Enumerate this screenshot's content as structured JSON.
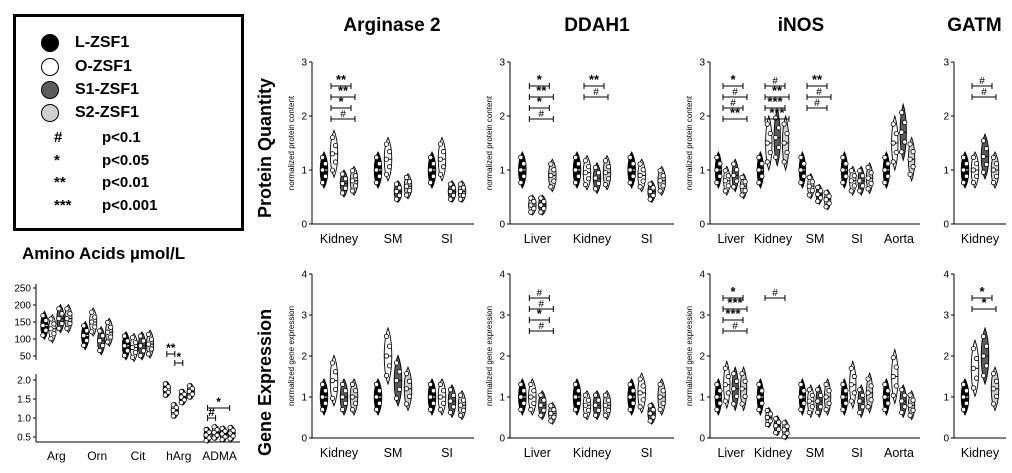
{
  "legend": {
    "groups": [
      {
        "label": "L-ZSF1",
        "color": "#000000"
      },
      {
        "label": "O-ZSF1",
        "color": "#ffffff"
      },
      {
        "label": "S1-ZSF1",
        "color": "#5c5c5c"
      },
      {
        "label": "S2-ZSF1",
        "color": "#cfcfcf"
      }
    ],
    "significance": [
      {
        "symbol": "#",
        "label": "p<0.1"
      },
      {
        "symbol": "*",
        "label": "p<0.05"
      },
      {
        "symbol": "**",
        "label": "p<0.01"
      },
      {
        "symbol": "***",
        "label": "p<0.001"
      }
    ]
  },
  "column_titles": [
    "Arginase 2",
    "DDAH1",
    "iNOS",
    "GATM"
  ],
  "row_titles": [
    "Protein Quantity",
    "Gene Expression"
  ],
  "amino_title": "Amino Acids µmol/L",
  "chart_data": [
    {
      "id": "amino-acids",
      "type": "violin",
      "title": "Amino Acids µmol/L",
      "categories": [
        "Arg",
        "Orn",
        "Cit",
        "hArg",
        "ADMA"
      ],
      "y_ticks": [
        "250",
        "200",
        "150",
        "100",
        "50",
        "2.0",
        "1.5",
        "1.0",
        "0.5"
      ],
      "series_medians": {
        "Arg": [
          140,
          130,
          160,
          160
        ],
        "Orn": [
          110,
          150,
          95,
          120
        ],
        "Cit": [
          80,
          75,
          80,
          85
        ],
        "hArg": [
          1.75,
          1.2,
          1.55,
          1.7
        ],
        "ADMA": [
          0.55,
          0.62,
          0.58,
          0.6
        ]
      },
      "annotations": [
        "**",
        "*",
        "#",
        "*"
      ]
    },
    {
      "id": "arg2-protein",
      "type": "violin",
      "ylabel": "normalized protein content",
      "categories": [
        "Kidney",
        "SM",
        "SI"
      ],
      "ylim": [
        0,
        3
      ],
      "series_medians": {
        "Kidney": [
          1.0,
          1.3,
          0.75,
          0.8
        ],
        "SM": [
          1.0,
          1.2,
          0.6,
          0.7
        ],
        "SI": [
          1.0,
          1.2,
          0.6,
          0.6
        ]
      },
      "annotations": [
        "**",
        "**",
        "*",
        "#"
      ]
    },
    {
      "id": "ddah1-protein",
      "type": "violin",
      "ylabel": "normalized protein content",
      "categories": [
        "Liver",
        "Kidney",
        "SI"
      ],
      "ylim": [
        0,
        3
      ],
      "series_medians": {
        "Liver": [
          1.0,
          0.35,
          0.35,
          0.9
        ],
        "Kidney": [
          1.0,
          0.95,
          0.85,
          0.95
        ],
        "SI": [
          1.0,
          0.9,
          0.6,
          0.8
        ]
      },
      "annotations": [
        "*",
        "**",
        "*",
        "#",
        "**",
        "#"
      ]
    },
    {
      "id": "inos-protein",
      "type": "violin",
      "ylabel": "normalized protein content",
      "categories": [
        "Liver",
        "Kidney",
        "SM",
        "SI",
        "Aorta"
      ],
      "ylim": [
        0,
        3
      ],
      "series_medians": {
        "Liver": [
          1.0,
          0.8,
          0.9,
          0.7
        ],
        "Kidney": [
          1.0,
          1.5,
          1.6,
          1.5
        ],
        "SM": [
          1.0,
          0.7,
          0.55,
          0.45
        ],
        "SI": [
          1.0,
          0.8,
          0.8,
          0.85
        ],
        "Aorta": [
          1.0,
          1.5,
          1.7,
          1.2
        ]
      },
      "annotations": [
        "*",
        "#",
        "#",
        "**",
        "#",
        "**",
        "***",
        "***",
        "**",
        "#",
        "#"
      ]
    },
    {
      "id": "gatm-protein",
      "type": "violin",
      "categories": [
        "Kidney"
      ],
      "ylim": [
        0,
        3
      ],
      "series_medians": {
        "Kidney": [
          1.0,
          1.0,
          1.25,
          1.0
        ]
      },
      "annotations": [
        "#",
        "#"
      ]
    },
    {
      "id": "arg2-gene",
      "type": "violin",
      "ylabel": "normalized gene expression",
      "categories": [
        "Kidney",
        "SM",
        "SI"
      ],
      "ylim": [
        0,
        4
      ],
      "series_medians": {
        "Kidney": [
          1.0,
          1.4,
          1.0,
          1.0
        ],
        "SM": [
          1.0,
          2.0,
          1.4,
          1.2
        ],
        "SI": [
          1.0,
          1.0,
          0.9,
          0.8
        ]
      },
      "annotations": []
    },
    {
      "id": "ddah1-gene",
      "type": "violin",
      "ylabel": "normalized gene expression",
      "categories": [
        "Liver",
        "Kidney",
        "SI"
      ],
      "ylim": [
        0,
        4
      ],
      "series_medians": {
        "Liver": [
          1.0,
          1.0,
          0.8,
          0.6
        ],
        "Kidney": [
          1.0,
          0.8,
          0.8,
          0.8
        ],
        "SI": [
          1.0,
          1.1,
          0.6,
          1.0
        ]
      },
      "annotations": [
        "#",
        "#",
        "*",
        "#"
      ]
    },
    {
      "id": "inos-gene",
      "type": "violin",
      "ylabel": "normalized gene expression",
      "categories": [
        "Liver",
        "Kidney",
        "SM",
        "SI",
        "Aorta"
      ],
      "ylim": [
        0,
        4
      ],
      "series_medians": {
        "Liver": [
          1.0,
          1.3,
          1.2,
          1.2
        ],
        "Kidney": [
          1.0,
          0.5,
          0.3,
          0.2
        ],
        "SM": [
          1.0,
          0.9,
          0.9,
          1.0
        ],
        "SI": [
          1.0,
          1.3,
          0.9,
          1.1
        ],
        "Aorta": [
          1.0,
          1.5,
          0.9,
          0.8
        ]
      },
      "annotations": [
        "*",
        "***",
        "***",
        "#",
        "#"
      ]
    },
    {
      "id": "gatm-gene",
      "type": "violin",
      "categories": [
        "Kidney"
      ],
      "ylim": [
        0,
        4
      ],
      "series_medians": {
        "Kidney": [
          1.0,
          1.7,
          2.0,
          1.2
        ]
      },
      "annotations": [
        "*",
        "*"
      ]
    }
  ]
}
